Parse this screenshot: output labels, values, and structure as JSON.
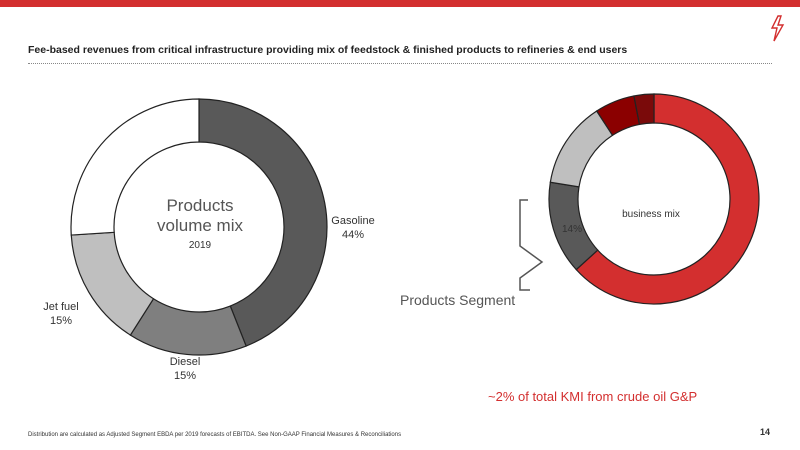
{
  "header": {
    "headline": "Fee-based revenues from critical infrastructure providing mix of feedstock & finished products to refineries & end users"
  },
  "chart_data": [
    {
      "type": "pie",
      "title": "Products volume mix",
      "subtitle": "2019",
      "slices": [
        {
          "label": "Gasoline",
          "value": 44,
          "value_label": "44%",
          "color": "#595959"
        },
        {
          "label": "Diesel",
          "value": 15,
          "value_label": "15%",
          "color": "#7f7f7f"
        },
        {
          "label": "Jet fuel",
          "value": 15,
          "value_label": "15%",
          "color": "#bfbfbf"
        },
        {
          "label": "",
          "value": 26,
          "value_label": "",
          "color": "#ffffff"
        }
      ]
    },
    {
      "type": "pie",
      "title": "business mix",
      "slices": [
        {
          "label": "",
          "value": 62,
          "value_label": "",
          "color": "#d32f2f"
        },
        {
          "label": "Products Segment",
          "value": 14,
          "value_label": "14%",
          "color": "#595959"
        },
        {
          "label": "",
          "value": 13,
          "value_label": "",
          "color": "#bfbfbf"
        },
        {
          "label": "",
          "value": 6,
          "value_label": "",
          "color": "#8b0000"
        },
        {
          "label": "",
          "value": 3,
          "value_label": "",
          "color": "#7a0a0a"
        }
      ]
    }
  ],
  "annotations": {
    "callout": "~2% of total KMI from crude oil G&P",
    "footnote": "Distribution are calculated as Adjusted Segment EBDA per 2019 forecasts of EBITDA. See Non-GAAP Financial Measures & Reconciliations",
    "page_number": "14"
  },
  "colors": {
    "accent": "#d32f2f"
  }
}
